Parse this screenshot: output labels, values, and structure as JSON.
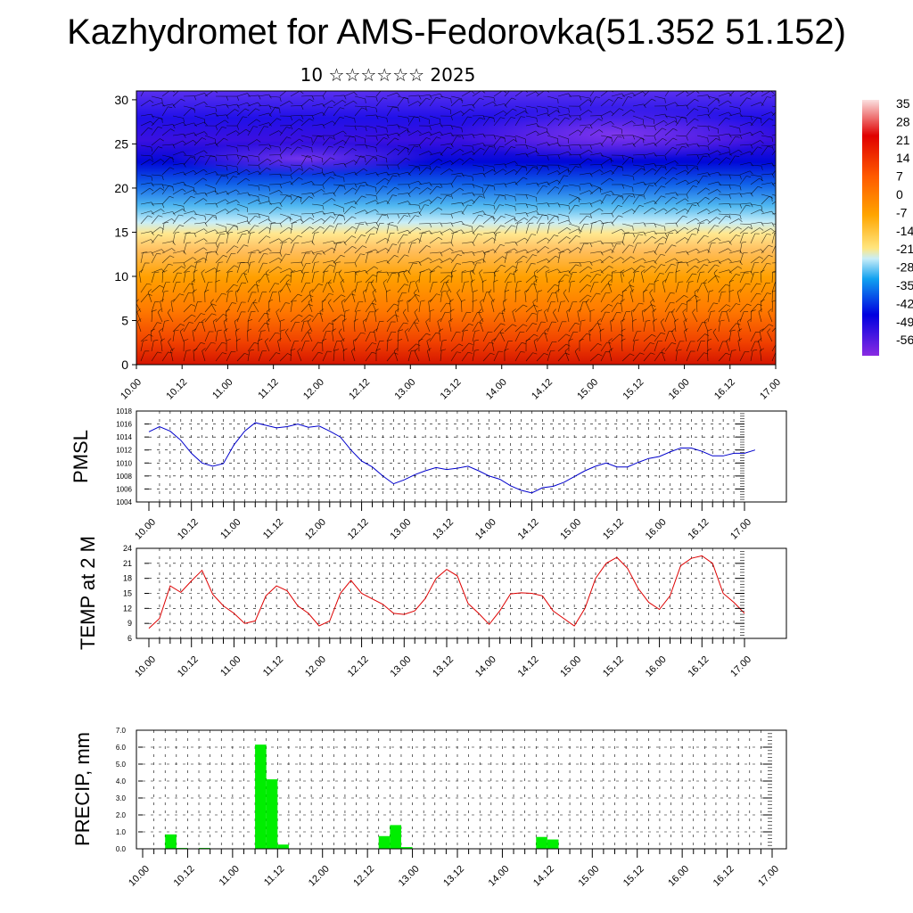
{
  "title": "Kazhydromet for AMS-Fedorovka(51.352 51.152)",
  "subtitle": "10 ☆☆☆☆☆☆ 2025",
  "x_tick_labels": [
    "10.00",
    "10.12",
    "11.00",
    "11.12",
    "12.00",
    "12.12",
    "13.00",
    "13.12",
    "14.00",
    "14.12",
    "15.00",
    "15.12",
    "16.00",
    "16.12",
    "17.00"
  ],
  "chart_data": [
    {
      "type": "heatmap",
      "name": "temperature-wind-cross-section",
      "x_ticks": [
        "10.00",
        "10.12",
        "11.00",
        "11.12",
        "12.00",
        "12.12",
        "13.00",
        "13.12",
        "14.00",
        "14.12",
        "15.00",
        "15.12",
        "16.00",
        "16.12",
        "17.00"
      ],
      "y_ticks": [
        0,
        5,
        10,
        15,
        20,
        25,
        30
      ],
      "ylim": [
        0,
        31
      ],
      "colorbar_labels": [
        "35",
        "28",
        "21",
        "14",
        "7",
        "0",
        "-7",
        "-14",
        "-21",
        "-28",
        "-35",
        "-42",
        "-49",
        "-56"
      ],
      "colormap": [
        "#fbe0e0",
        "#e00000",
        "#ff6a00",
        "#ffa500",
        "#ffe680",
        "#a8e8f8",
        "#10a0f0",
        "#0000e0",
        "#8a2be2"
      ],
      "overlay": "wind barbs"
    },
    {
      "type": "line",
      "ylabel": "PMSL",
      "ylim": [
        1004,
        1018
      ],
      "y_ticks": [
        1004,
        1006,
        1008,
        1010,
        1012,
        1014,
        1016,
        1018
      ],
      "line_color": "#0000cc",
      "x_step_hours": 3,
      "values": [
        1014.8,
        1015.6,
        1014.9,
        1013.5,
        1011.5,
        1010.0,
        1009.5,
        1009.9,
        1012.8,
        1014.9,
        1016.2,
        1015.8,
        1015.4,
        1015.6,
        1016.0,
        1015.5,
        1015.7,
        1014.9,
        1014.0,
        1012.0,
        1010.3,
        1009.4,
        1008.0,
        1006.8,
        1007.4,
        1008.2,
        1008.8,
        1009.3,
        1009.0,
        1009.2,
        1009.5,
        1008.8,
        1008.0,
        1007.5,
        1006.5,
        1005.8,
        1005.4,
        1006.2,
        1006.4,
        1007.0,
        1007.9,
        1008.8,
        1009.5,
        1010.0,
        1009.4,
        1009.4,
        1010.1,
        1010.7,
        1011.0,
        1011.7,
        1012.3,
        1012.3,
        1011.8,
        1011.1,
        1011.1,
        1011.5,
        1011.5,
        1012.0
      ]
    },
    {
      "type": "line",
      "ylabel": "TEMP at 2 M",
      "ylim": [
        6,
        24
      ],
      "y_ticks": [
        6,
        9,
        12,
        15,
        18,
        21,
        24
      ],
      "line_color": "#dd0000",
      "x_step_hours": 3,
      "values": [
        8.0,
        10.0,
        16.5,
        15.2,
        17.5,
        19.6,
        14.8,
        12.5,
        11.0,
        9.0,
        9.5,
        14.5,
        16.5,
        15.5,
        12.5,
        11.0,
        8.5,
        9.5,
        15.0,
        17.6,
        15.0,
        13.9,
        12.8,
        11.0,
        10.8,
        11.5,
        14.0,
        18.0,
        19.8,
        18.5,
        13.0,
        11.0,
        8.8,
        11.5,
        14.9,
        15.1,
        15.0,
        14.5,
        11.5,
        10.0,
        8.5,
        12.0,
        18.0,
        21.0,
        22.2,
        20.0,
        16.0,
        13.2,
        11.8,
        14.5,
        20.5,
        22.0,
        22.5,
        21.0,
        15.0,
        13.2,
        11.0
      ]
    },
    {
      "type": "bar",
      "ylabel": "PRECIP, mm",
      "ylim": [
        0,
        7
      ],
      "y_ticks": [
        "0.0",
        "1.0",
        "2.0",
        "3.0",
        "4.0",
        "5.0",
        "6.0",
        "7.0"
      ],
      "bar_color": "#00ee00",
      "x_step_hours": 3,
      "values": [
        0,
        0,
        0.85,
        0.05,
        0,
        0.05,
        0,
        0,
        0,
        0,
        6.15,
        4.1,
        0.25,
        0,
        0,
        0,
        0,
        0,
        0,
        0,
        0,
        0.75,
        1.4,
        0.1,
        0,
        0,
        0,
        0,
        0,
        0,
        0,
        0,
        0,
        0,
        0,
        0.7,
        0.55,
        0,
        0,
        0,
        0,
        0,
        0,
        0,
        0,
        0,
        0,
        0,
        0,
        0,
        0,
        0,
        0,
        0,
        0,
        0,
        0
      ]
    }
  ]
}
